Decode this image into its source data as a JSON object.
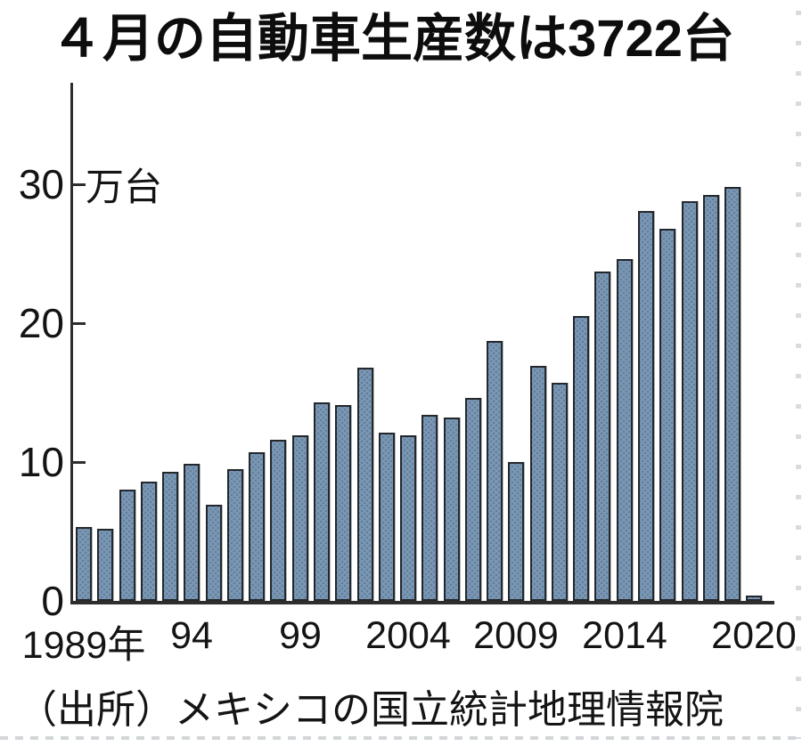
{
  "title": "４月の自動車生産数は3722台",
  "source": "（出所）メキシコの国立統計地理情報院",
  "y_axis": {
    "unit_label": "万台",
    "ticks": [
      {
        "value": 30,
        "label": "30"
      },
      {
        "value": 20,
        "label": "20"
      },
      {
        "value": 10,
        "label": "10"
      },
      {
        "value": 0,
        "label": "0"
      }
    ]
  },
  "x_axis": {
    "ticks": [
      {
        "year": 1989,
        "label": "1989年"
      },
      {
        "year": 1994,
        "label": "94"
      },
      {
        "year": 1999,
        "label": "99"
      },
      {
        "year": 2004,
        "label": "2004"
      },
      {
        "year": 2009,
        "label": "2009"
      },
      {
        "year": 2014,
        "label": "2014"
      },
      {
        "year": 2020,
        "label": "2020"
      }
    ]
  },
  "colors": {
    "bar_fill": "#7b97b3",
    "bar_pattern_dot": "#60809f",
    "bar_border": "#24282d",
    "axis": "#2e2e2e",
    "text": "#141414",
    "edge_dots": "#d2d6d9",
    "background": "#ffffff"
  },
  "chart_data": {
    "type": "bar",
    "title": "４月の自動車生産数は3722台",
    "xlabel": "",
    "ylabel": "万台",
    "ylim": [
      0,
      33
    ],
    "yticks": [
      0,
      10,
      20,
      30
    ],
    "grid": false,
    "legend": "none",
    "x": [
      1989,
      1990,
      1991,
      1992,
      1993,
      1994,
      1995,
      1996,
      1997,
      1998,
      1999,
      2000,
      2001,
      2002,
      2003,
      2004,
      2005,
      2006,
      2007,
      2008,
      2009,
      2010,
      2011,
      2012,
      2013,
      2014,
      2015,
      2016,
      2017,
      2018,
      2019,
      2020
    ],
    "values": [
      5.3,
      5.2,
      8.0,
      8.6,
      9.3,
      9.9,
      6.9,
      9.5,
      10.7,
      11.6,
      11.9,
      14.3,
      14.1,
      16.8,
      12.1,
      11.9,
      13.4,
      13.2,
      14.6,
      18.7,
      10.0,
      16.9,
      15.7,
      20.5,
      23.7,
      24.6,
      28.1,
      26.8,
      28.8,
      29.2,
      29.8,
      0.37
    ]
  }
}
